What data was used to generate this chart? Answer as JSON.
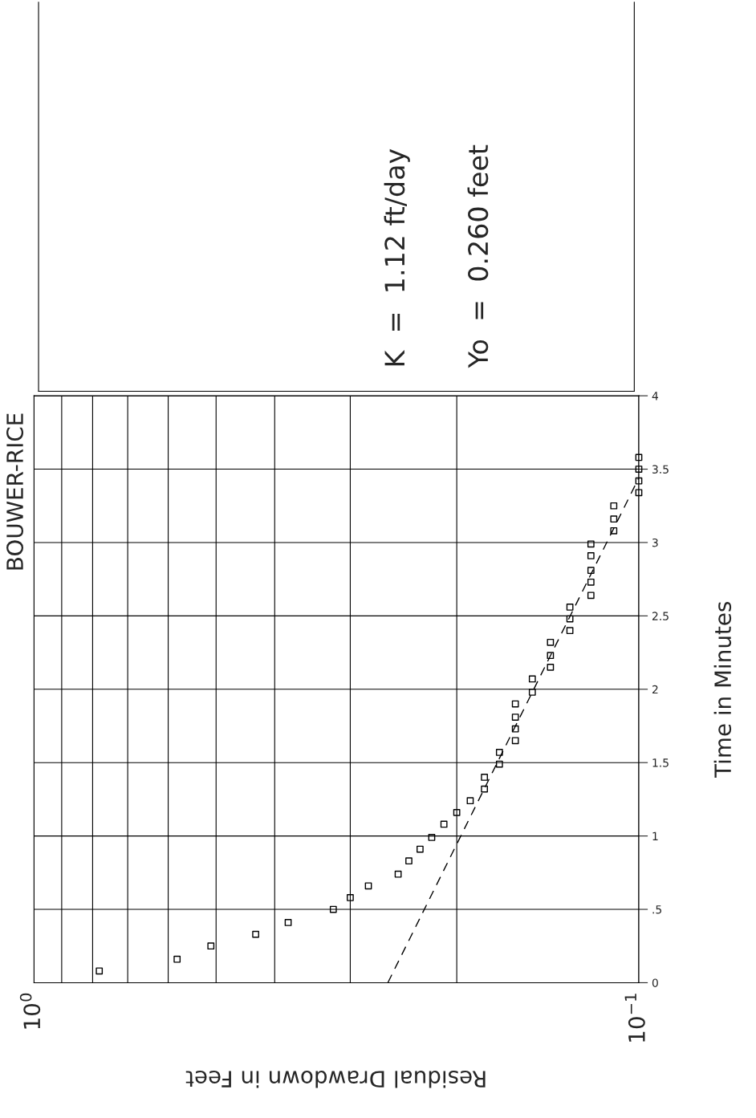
{
  "chart_data": {
    "type": "scatter",
    "title": "BOUWER-RICE",
    "xlabel": "Residual Drawdown in Feet",
    "ylabel": "Time in Minutes",
    "annotations": [
      "K  =  1.12 ft/day",
      "Yo  =  0.260 feet"
    ],
    "x": [
      0.78,
      0.58,
      0.51,
      0.43,
      0.38,
      0.32,
      0.3,
      0.28,
      0.25,
      0.24,
      0.23,
      0.22,
      0.21,
      0.2,
      0.19,
      0.18,
      0.18,
      0.17,
      0.17,
      0.16,
      0.16,
      0.16,
      0.16,
      0.15,
      0.15,
      0.14,
      0.14,
      0.14,
      0.13,
      0.13,
      0.13,
      0.12,
      0.12,
      0.12,
      0.12,
      0.12,
      0.11,
      0.11,
      0.11,
      0.1,
      0.1,
      0.1,
      0.1
    ],
    "series": [
      {
        "color": "#000000",
        "marker": "square",
        "values": [
          0.08,
          0.16,
          0.25,
          0.33,
          0.41,
          0.5,
          0.58,
          0.66,
          0.74,
          0.83,
          0.91,
          0.99,
          1.08,
          1.16,
          1.24,
          1.32,
          1.4,
          1.49,
          1.57,
          1.65,
          1.73,
          1.81,
          1.9,
          1.98,
          2.07,
          2.15,
          2.23,
          2.32,
          2.4,
          2.48,
          2.56,
          2.64,
          2.73,
          2.81,
          2.91,
          2.99,
          3.08,
          3.16,
          3.25,
          3.34,
          3.42,
          3.5,
          3.58
        ]
      },
      {
        "type": "line",
        "color": "#000000",
        "marker": "none",
        "line_style": "dashed",
        "x": [
          0.26,
          0.1
        ],
        "values": [
          0,
          3.44
        ]
      }
    ],
    "log": "x",
    "ylim": [
      0,
      4
    ],
    "xlim": [
      1,
      0.1
    ],
    "yticks": [
      0,
      {
        "value": 0.5,
        "label": ".5"
      },
      1,
      1.5,
      2,
      2.5,
      3,
      3.5,
      4
    ],
    "xticks": [
      {
        "value": 1,
        "label": "10$^{0}$"
      },
      {
        "value": 0.9,
        "label": null
      },
      {
        "value": 0.8,
        "label": null
      },
      {
        "value": 0.7,
        "label": null
      },
      {
        "value": 0.6,
        "label": null
      },
      {
        "value": 0.5,
        "label": null
      },
      {
        "value": 0.4,
        "label": null
      },
      {
        "value": 0.3,
        "label": null
      },
      {
        "value": 0.2,
        "label": null
      },
      {
        "value": 0.1,
        "label": "10$^{−1}$"
      }
    ],
    "grid": true
  }
}
